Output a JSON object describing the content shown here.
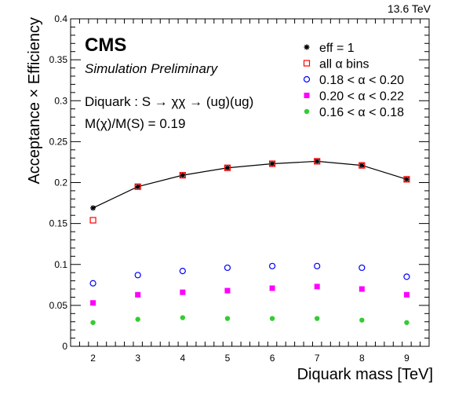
{
  "energy_label": "13.6 TeV",
  "cms": {
    "logo": "CMS",
    "subtitle": "Simulation Preliminary"
  },
  "annotations": {
    "process": "Diquark : S → χχ → (ug)(ug)",
    "mass_ratio": "M(χ)/M(S) = 0.19"
  },
  "chart_data": {
    "type": "scatter",
    "xlabel": "Diquark mass [TeV]",
    "ylabel": "Acceptance × Efficiency",
    "xlim": [
      1.5,
      9.5
    ],
    "ylim": [
      0,
      0.4
    ],
    "x_ticks": [
      "2",
      "3",
      "4",
      "5",
      "6",
      "7",
      "8",
      "9"
    ],
    "y_ticks": [
      "0",
      "0.05",
      "0.1",
      "0.15",
      "0.2",
      "0.25",
      "0.3",
      "0.35",
      "0.4"
    ],
    "grid": false,
    "legend_position": "top-right",
    "x": [
      2,
      3,
      4,
      5,
      6,
      7,
      8,
      9
    ],
    "series": [
      {
        "name": "eff = 1",
        "marker": "star",
        "color": "#000000",
        "line": true,
        "values": [
          0.169,
          0.195,
          0.209,
          0.218,
          0.223,
          0.226,
          0.221,
          0.204
        ]
      },
      {
        "name": "all α bins",
        "marker": "open-square",
        "color": "#ff0000",
        "values": [
          0.154,
          0.195,
          0.209,
          0.218,
          0.223,
          0.226,
          0.221,
          0.204
        ]
      },
      {
        "name": "0.18 < α < 0.20",
        "marker": "open-circle",
        "color": "#0000ff",
        "values": [
          0.077,
          0.087,
          0.092,
          0.096,
          0.098,
          0.098,
          0.096,
          0.085
        ]
      },
      {
        "name": "0.20 < α < 0.22",
        "marker": "filled-square",
        "color": "#ff00ff",
        "values": [
          0.053,
          0.063,
          0.066,
          0.068,
          0.071,
          0.073,
          0.07,
          0.063
        ]
      },
      {
        "name": "0.16 < α < 0.18",
        "marker": "filled-circle",
        "color": "#33cc33",
        "values": [
          0.029,
          0.033,
          0.035,
          0.034,
          0.034,
          0.034,
          0.032,
          0.029
        ]
      }
    ]
  }
}
